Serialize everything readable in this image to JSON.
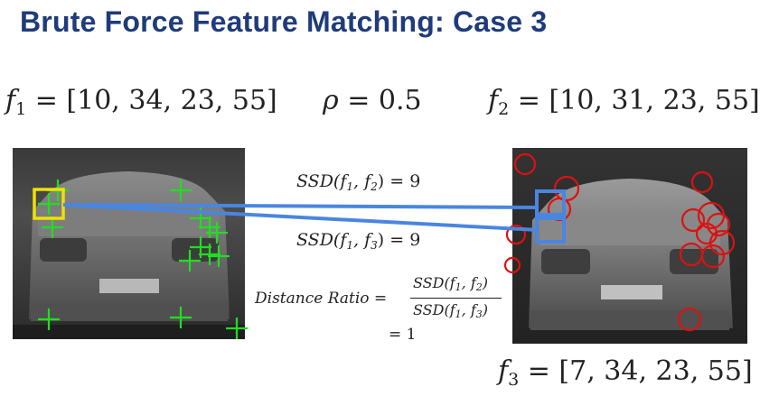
{
  "title": "Brute Force Feature Matching: Case 3",
  "f1": {
    "name": "f",
    "sub": "1",
    "values": "= [10, 34, 23, 55]"
  },
  "rho": {
    "symbol": "ρ",
    "value": "= 0.5"
  },
  "f2": {
    "name": "f",
    "sub": "2",
    "values": "= [10, 31, 23, 55]"
  },
  "f3": {
    "name": "f",
    "sub": "3",
    "values": "= [7, 34, 23, 55]"
  },
  "ssd12": {
    "prefix": "SSD(f",
    "a": "1",
    "mid": ", f",
    "b": "2",
    "suffix": ") = 9"
  },
  "ssd13": {
    "prefix": "SSD(f",
    "a": "1",
    "mid": ", f",
    "b": "3",
    "suffix": ") = 9"
  },
  "ratio": {
    "label": "Distance Ratio =",
    "numerator": {
      "prefix": "SSD(f",
      "a": "1",
      "mid": ", f",
      "b": "2",
      "suffix": ")"
    },
    "denominator": {
      "prefix": "SSD(f",
      "a": "1",
      "mid": ", f",
      "b": "3",
      "suffix": ")"
    },
    "result": "= 1"
  },
  "colors": {
    "title": "#1f3b7a",
    "match_line": "#4a86e0",
    "keypoint_left": "#22dd22",
    "keypoint_right": "#dd1111",
    "query_box": "#f0e000",
    "match_box": "#4a86e0"
  }
}
